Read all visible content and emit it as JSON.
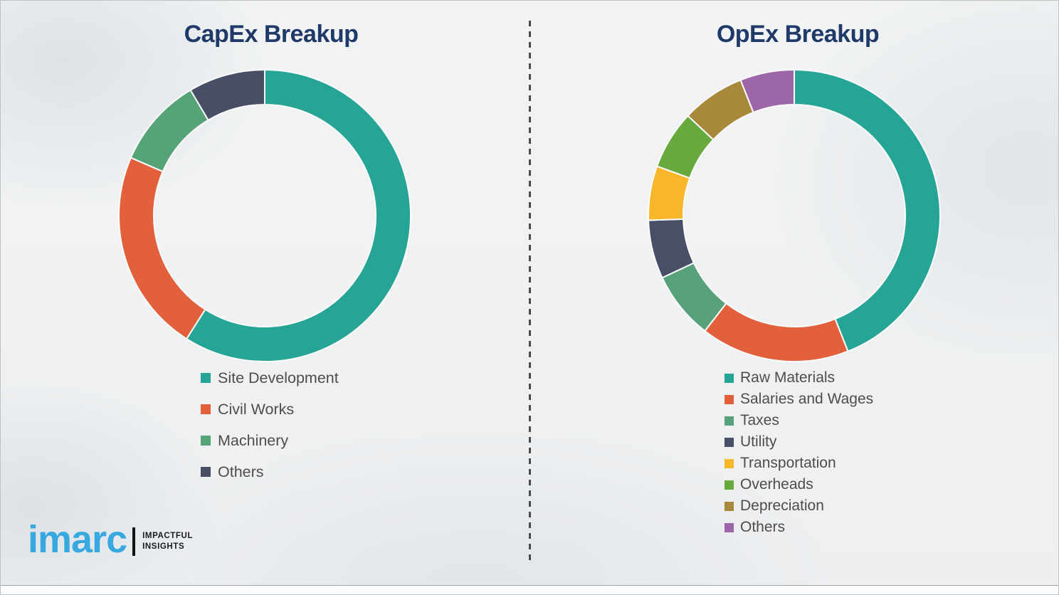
{
  "page": {
    "background_color": "#eef0f2",
    "title_color": "#1f3a68",
    "legend_text_color": "#4d4d4d",
    "divider_color": "#4a4a4a",
    "separator_stroke_color": "#fbfbfb"
  },
  "chart_data": [
    {
      "type": "pie",
      "subtype": "donut",
      "title": "CapEx Breakup",
      "categories": [
        "Site Development",
        "Civil Works",
        "Machinery",
        "Others"
      ],
      "values": [
        59,
        22.5,
        10,
        8.5
      ],
      "colors": [
        "#26a495",
        "#e2613c",
        "#56a377",
        "#474e66"
      ],
      "start_angle_deg": 0,
      "direction": "clockwise",
      "inner_radius_ratio": 0.76,
      "legend_position": "below-left",
      "data_labels_shown": false
    },
    {
      "type": "pie",
      "subtype": "donut",
      "title": "OpEx Breakup",
      "categories": [
        "Raw Materials",
        "Salaries and Wages",
        "Taxes",
        "Utility",
        "Transportation",
        "Overheads",
        "Depreciation",
        "Others"
      ],
      "values": [
        44,
        16.5,
        7.5,
        6.5,
        6,
        6.5,
        7,
        6
      ],
      "colors": [
        "#26a495",
        "#e2613c",
        "#57a17b",
        "#484f67",
        "#f8b62a",
        "#67a93c",
        "#a8893c",
        "#9d66a9"
      ],
      "start_angle_deg": 0,
      "direction": "clockwise",
      "inner_radius_ratio": 0.76,
      "legend_position": "below-left",
      "data_labels_shown": false
    }
  ],
  "branding": {
    "logo_text": "imarc",
    "tagline": [
      "IMPACTFUL",
      "INSIGHTS"
    ],
    "logo_color": "#38a9e0",
    "tagline_color": "#1a1a1a"
  }
}
